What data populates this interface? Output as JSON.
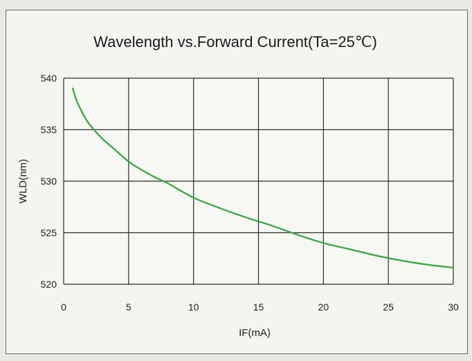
{
  "chart_data": {
    "type": "line",
    "title": "Wavelength vs.Forward Current(Ta=25℃)",
    "xlabel": "IF(mA)",
    "ylabel": "WLD(nm)",
    "xlim": [
      0,
      30
    ],
    "ylim": [
      520,
      540
    ],
    "xticks": [
      "0",
      "5",
      "10",
      "15",
      "20",
      "25",
      "30"
    ],
    "yticks": [
      "520",
      "525",
      "530",
      "535",
      "540"
    ],
    "grid": true,
    "line_color": "#3daa48",
    "series": [
      {
        "x": [
          0.7,
          1,
          1.5,
          2,
          3,
          4,
          5,
          6,
          7,
          8,
          10,
          12,
          14,
          16,
          18,
          20,
          22,
          24,
          26,
          28,
          30
        ],
        "values": [
          539.0,
          537.8,
          536.5,
          535.5,
          534.1,
          533.0,
          531.9,
          531.1,
          530.4,
          529.8,
          528.4,
          527.4,
          526.5,
          525.7,
          524.8,
          524.0,
          523.4,
          522.8,
          522.3,
          521.9,
          521.6
        ]
      }
    ]
  }
}
